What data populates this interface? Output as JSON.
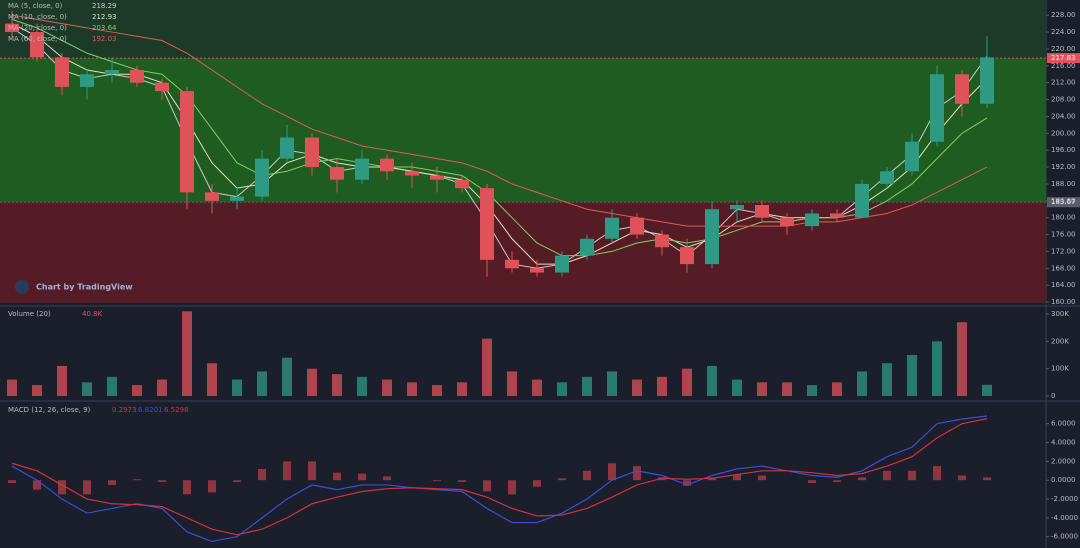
{
  "chart_data": [
    {
      "type": "candlestick",
      "watermark": "Chart by TradingView",
      "up_color": "#2e9a84",
      "down_color": "#e0525a",
      "ohlc": [
        [
          226,
          229,
          223,
          224
        ],
        [
          224,
          226,
          217,
          218
        ],
        [
          218,
          219,
          209,
          211
        ],
        [
          211,
          215,
          208,
          214
        ],
        [
          214,
          218,
          212,
          215
        ],
        [
          215,
          216,
          211,
          212
        ],
        [
          212,
          213,
          208,
          210
        ],
        [
          210,
          211,
          182,
          186
        ],
        [
          186,
          188,
          181,
          184
        ],
        [
          184,
          187,
          182,
          185
        ],
        [
          185,
          196,
          184,
          194
        ],
        [
          194,
          202,
          193,
          199
        ],
        [
          199,
          200,
          190,
          192
        ],
        [
          192,
          194,
          186,
          189
        ],
        [
          189,
          196,
          188,
          194
        ],
        [
          194,
          195,
          189,
          191
        ],
        [
          191,
          193,
          187,
          190
        ],
        [
          190,
          192,
          186,
          189
        ],
        [
          189,
          190,
          186,
          187
        ],
        [
          187,
          188,
          166,
          170
        ],
        [
          170,
          172,
          167,
          168
        ],
        [
          168,
          170,
          166,
          167
        ],
        [
          167,
          172,
          166,
          171
        ],
        [
          171,
          176,
          170,
          175
        ],
        [
          175,
          182,
          174,
          180
        ],
        [
          180,
          181,
          175,
          176
        ],
        [
          176,
          177,
          171,
          173
        ],
        [
          173,
          175,
          167,
          169
        ],
        [
          169,
          184,
          168,
          182
        ],
        [
          182,
          184,
          179,
          183
        ],
        [
          183,
          184,
          179,
          180
        ],
        [
          180,
          181,
          176,
          178
        ],
        [
          178,
          182,
          177,
          181
        ],
        [
          181,
          182,
          179,
          180
        ],
        [
          180,
          189,
          180,
          188
        ],
        [
          188,
          192,
          187,
          191
        ],
        [
          191,
          200,
          190,
          198
        ],
        [
          198,
          216,
          197,
          214
        ],
        [
          214,
          215,
          204,
          207
        ],
        [
          207,
          223,
          206,
          218
        ]
      ],
      "series": [
        {
          "name": "MA (5, close, 0)",
          "color": "#c9c9c9",
          "values": [
            225,
            221,
            215,
            213,
            214,
            213,
            211,
            198,
            186,
            185,
            190,
            196,
            195,
            191,
            192,
            192,
            191,
            190,
            188,
            179,
            169,
            168,
            169,
            173,
            177,
            178,
            175,
            171,
            176,
            182,
            181,
            179,
            180,
            180,
            185,
            190,
            195,
            206,
            210,
            218.29
          ]
        },
        {
          "name": "MA (10, close, 0)",
          "color": "#e8e2c0",
          "values": [
            226,
            223,
            218,
            215,
            214,
            214,
            212,
            203,
            193,
            187,
            188,
            193,
            195,
            193,
            192,
            192,
            191,
            190,
            189,
            183,
            175,
            169,
            169,
            171,
            174,
            177,
            176,
            173,
            175,
            179,
            181,
            180,
            180,
            180,
            183,
            187,
            192,
            200,
            207,
            212.93
          ]
        },
        {
          "name": "MA (20, close, 0)",
          "color": "#7fcf6a",
          "values": [
            227,
            225,
            222,
            219,
            217,
            215,
            214,
            209,
            201,
            193,
            190,
            191,
            193,
            194,
            193,
            192,
            192,
            191,
            190,
            186,
            180,
            174,
            171,
            171,
            172,
            174,
            175,
            174,
            175,
            177,
            179,
            179,
            180,
            180,
            181,
            184,
            188,
            194,
            200,
            203.64
          ]
        },
        {
          "name": "MA (60, close, 0)",
          "color": "#e05a5a",
          "values": [
            228,
            227,
            226,
            225,
            224,
            223,
            222,
            219,
            215,
            211,
            207,
            204,
            201,
            199,
            197,
            196,
            195,
            194,
            193,
            191,
            188,
            186,
            184,
            182,
            181,
            180,
            179,
            178,
            178,
            178,
            178,
            178,
            179,
            179,
            180,
            181,
            183,
            186,
            189,
            192.03
          ]
        }
      ],
      "levels": [
        {
          "value": 217.83,
          "color": "#e0525a"
        },
        {
          "value": 183.67,
          "color": "#5a5d6a"
        }
      ],
      "ylim": [
        159.3,
        231.6
      ],
      "yticks": [
        {
          "value": 160,
          "label": "160.00"
        },
        {
          "value": 164,
          "label": "164.00"
        },
        {
          "value": 168,
          "label": "168.00"
        },
        {
          "value": 172,
          "label": "172.00"
        },
        {
          "value": 176,
          "label": "176.00"
        },
        {
          "value": 180,
          "label": "180.00"
        },
        {
          "value": 184,
          "label": "184.00"
        },
        {
          "value": 188,
          "label": "188.00"
        },
        {
          "value": 192,
          "label": "192.00"
        },
        {
          "value": 196,
          "label": "196.00"
        },
        {
          "value": 200,
          "label": "200.00"
        },
        {
          "value": 204,
          "label": "204.00"
        },
        {
          "value": 208,
          "label": "208.00"
        },
        {
          "value": 212,
          "label": "212.00"
        },
        {
          "value": 216,
          "label": "216.00"
        },
        {
          "value": 220,
          "label": "220.00"
        },
        {
          "value": 224,
          "label": "224.00"
        },
        {
          "value": 228,
          "label": "228.00"
        }
      ]
    },
    {
      "type": "bar",
      "title": "Volume (20)",
      "last_value_label": "40.8K",
      "values": [
        60000,
        40000,
        110000,
        50000,
        70000,
        40000,
        60000,
        310000,
        120000,
        60000,
        90000,
        140000,
        100000,
        80000,
        70000,
        60000,
        50000,
        40000,
        50000,
        210000,
        90000,
        60000,
        50000,
        70000,
        90000,
        60000,
        70000,
        100000,
        110000,
        60000,
        50000,
        50000,
        40000,
        50000,
        90000,
        120000,
        150000,
        200000,
        270000,
        40800
      ],
      "ylim": [
        0,
        322000
      ],
      "yticks": [
        0,
        {
          "value": 100000,
          "label": "100K"
        },
        {
          "value": 200000,
          "label": "200K"
        },
        {
          "value": 300000,
          "label": "300K"
        }
      ]
    },
    {
      "type": "macd",
      "title": "MACD (12, 26, close, 9)",
      "histogram": {
        "color": "#c0404a",
        "values": [
          -0.3,
          -1,
          -1.5,
          -1.5,
          -0.5,
          0.1,
          -0.2,
          -1.5,
          -1.3,
          -0.2,
          1.2,
          2,
          2,
          0.8,
          0.7,
          0.4,
          0,
          -0.1,
          -0.2,
          -1.2,
          -1.5,
          -0.7,
          0.2,
          1,
          1.8,
          1.5,
          0.3,
          -0.6,
          0.3,
          0.6,
          0.5,
          0,
          -0.3,
          -0.2,
          0.3,
          1,
          1,
          1.5,
          0.5,
          0.2973
        ]
      },
      "series": [
        {
          "color": "#3b4fd8",
          "values": [
            1.5,
            0,
            -2,
            -3.5,
            -3,
            -2.5,
            -3,
            -5.5,
            -6.5,
            -6,
            -4,
            -2,
            -0.5,
            -1,
            -0.5,
            -0.5,
            -0.8,
            -1,
            -1.2,
            -3,
            -4.5,
            -4.5,
            -3.5,
            -2,
            0,
            1,
            0.5,
            -0.5,
            0.5,
            1.2,
            1.5,
            1,
            0.5,
            0.3,
            1,
            2.5,
            3.5,
            6,
            6.5,
            6.8201
          ]
        },
        {
          "color": "#d0343c",
          "values": [
            1.8,
            1,
            -0.5,
            -2,
            -2.5,
            -2.6,
            -2.8,
            -4,
            -5.2,
            -5.8,
            -5.2,
            -4,
            -2.5,
            -1.8,
            -1.2,
            -0.9,
            -0.8,
            -0.9,
            -1,
            -1.8,
            -3,
            -3.8,
            -3.7,
            -3,
            -1.8,
            -0.5,
            0.2,
            0.1,
            0.2,
            0.6,
            1,
            1,
            0.8,
            0.5,
            0.7,
            1.5,
            2.5,
            4.5,
            6,
            6.5298
          ]
        }
      ],
      "ylim": [
        -7.2,
        8.2
      ],
      "yticks": [
        {
          "value": -6,
          "label": "-6.0000"
        },
        {
          "value": -4,
          "label": "-4.0000"
        },
        {
          "value": -2,
          "label": "-2.0000"
        },
        {
          "value": 0,
          "label": "0.0000"
        },
        {
          "value": 2,
          "label": "2.0000"
        },
        {
          "value": 4,
          "label": "4.0000"
        },
        {
          "value": 6,
          "label": "6.0000"
        }
      ]
    }
  ]
}
